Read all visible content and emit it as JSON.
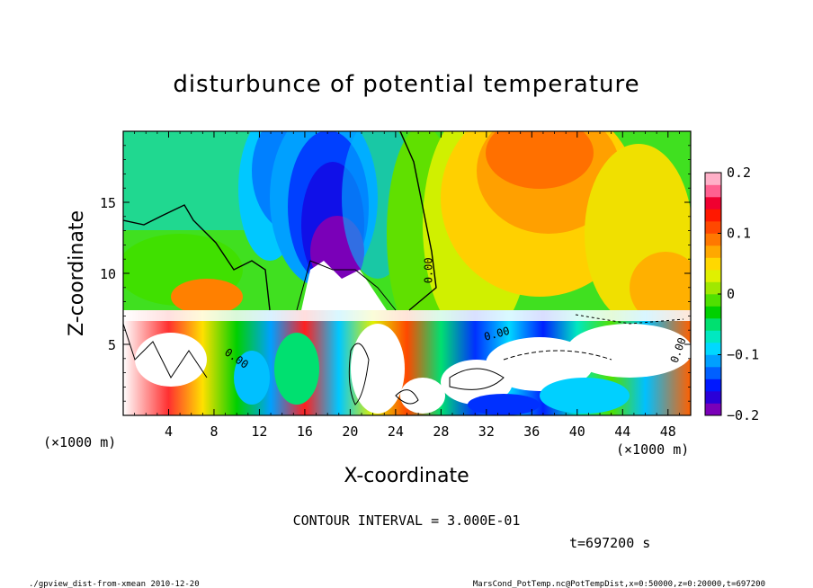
{
  "chart_data": {
    "type": "heatmap",
    "title": "disturbunce of potential temperature",
    "xlabel": "X-coordinate",
    "ylabel": "Z-coordinate",
    "x_unit": "(×1000 m)",
    "z_unit": "(×1000 m)",
    "xlim": [
      0,
      50
    ],
    "ylim": [
      0,
      20
    ],
    "x_ticks": [
      4,
      8,
      12,
      16,
      20,
      24,
      28,
      32,
      36,
      40,
      44,
      48
    ],
    "y_ticks": [
      5,
      10,
      15
    ],
    "colorbar": {
      "range": [
        -0.2,
        0.2
      ],
      "tick_values": [
        0.2,
        0.1,
        0,
        -0.1,
        -0.2
      ],
      "tick_labels": [
        "0.2",
        "0.1",
        "0",
        "−0.1",
        "−0.2"
      ],
      "colors": [
        "#7a00b8",
        "#2a00d8",
        "#0018ff",
        "#0060ff",
        "#00a0ff",
        "#00d8ff",
        "#00e8c0",
        "#00e070",
        "#00d000",
        "#50e000",
        "#a0e800",
        "#e0f000",
        "#ffd800",
        "#ffa800",
        "#ff7800",
        "#ff4800",
        "#ff1800",
        "#f00030",
        "#ff6090",
        "#ffb0c8"
      ]
    },
    "contour_labels": [
      {
        "text": "0.00",
        "x": 27.2,
        "z": 10.2,
        "rotate": -90
      },
      {
        "text": "0.00",
        "x": 33.0,
        "z": 5.5,
        "rotate": -15
      },
      {
        "text": "0.00",
        "x": 9.8,
        "z": 3.8,
        "rotate": 35
      },
      {
        "text": "0.00",
        "x": 49.2,
        "z": 4.5,
        "rotate": -70
      }
    ],
    "contour_interval": "CONTOUR INTERVAL = 3.000E-01",
    "time": "t=697200 s"
  },
  "footer": {
    "left": "./gpview_dist-from-xmean  2010-12-20",
    "right": "MarsCond_PotTemp.nc@PotTempDist,x=0:50000,z=0:20000,t=697200"
  }
}
